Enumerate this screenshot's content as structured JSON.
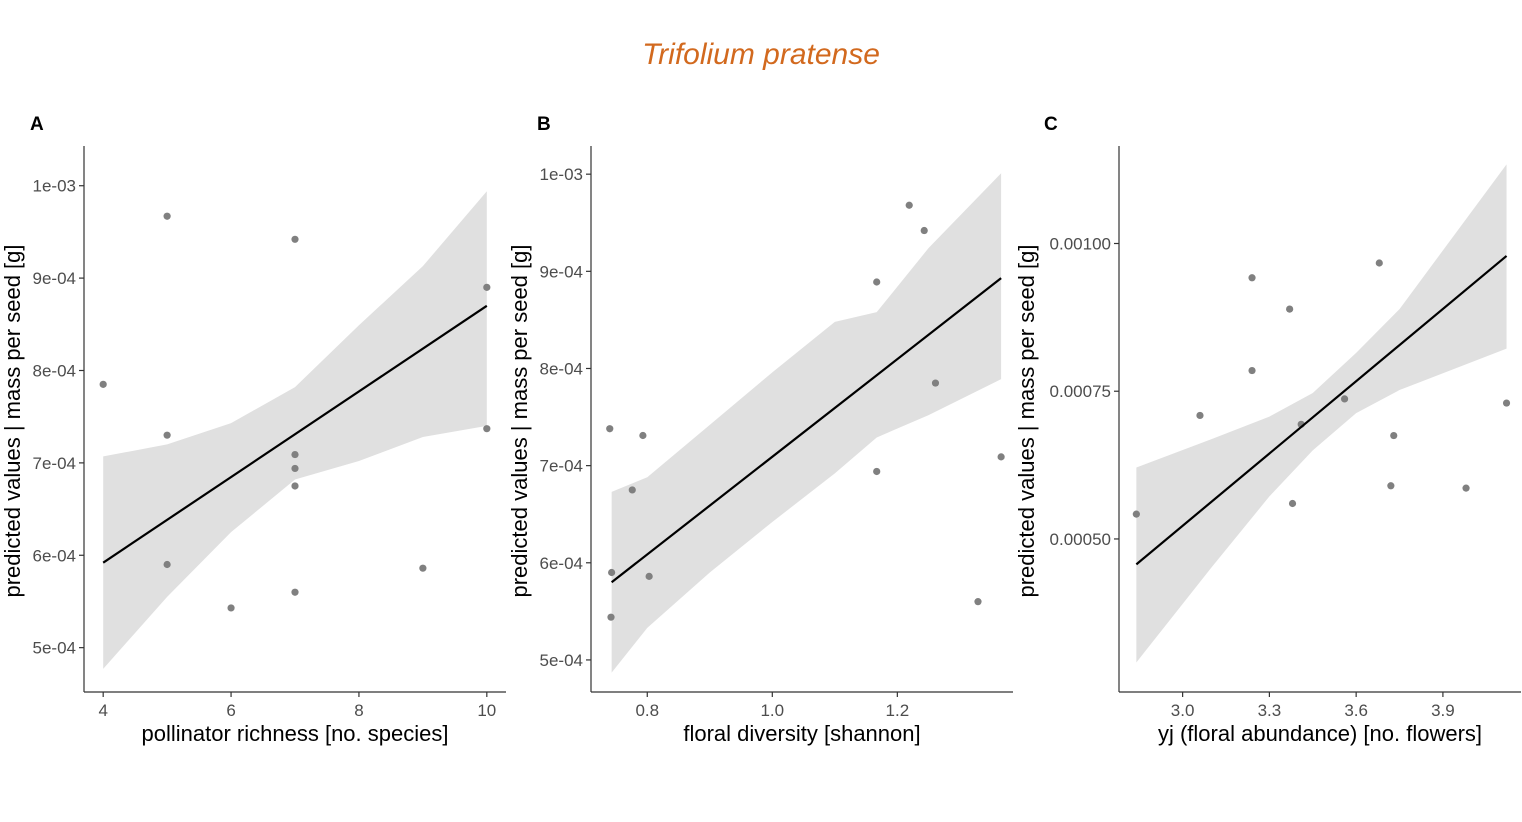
{
  "title": "Trifolium pratense",
  "colors": {
    "title": "#D2691E",
    "points": "#808080",
    "band": "#E0E0E0",
    "line": "#000000",
    "axis": "#333333"
  },
  "chart_data": [
    {
      "type": "scatter",
      "panel_label": "A",
      "xlabel": "pollinator richness [no. species]",
      "ylabel": "predicted values | mass per seed [g]",
      "xlim": [
        3.7,
        10.3
      ],
      "ylim": [
        0.000452,
        0.001043
      ],
      "xticks": [
        4,
        6,
        8,
        10
      ],
      "xtick_labels": [
        "4",
        "6",
        "8",
        "10"
      ],
      "yticks": [
        0.0005,
        0.0006,
        0.0007,
        0.0008,
        0.0009,
        0.001
      ],
      "ytick_labels": [
        "5e-04",
        "6e-04",
        "7e-04",
        "8e-04",
        "9e-04",
        "1e-03"
      ],
      "points": {
        "x": [
          4,
          5,
          5,
          5,
          6,
          7,
          7,
          7,
          7,
          7,
          9,
          10,
          10
        ],
        "y": [
          0.000785,
          0.000967,
          0.00073,
          0.00059,
          0.000543,
          0.000942,
          0.000709,
          0.000694,
          0.000675,
          0.00056,
          0.000586,
          0.00089,
          0.000737
        ]
      },
      "fit": {
        "x": [
          4,
          10
        ],
        "y": [
          0.000592,
          0.00087
        ]
      },
      "band": {
        "x": [
          4,
          5,
          6,
          7,
          8,
          9,
          10
        ],
        "lower": [
          0.000477,
          0.000555,
          0.000625,
          0.000682,
          0.000702,
          0.000728,
          0.00074
        ],
        "upper": [
          0.000707,
          0.00072,
          0.000743,
          0.000782,
          0.000849,
          0.000913,
          0.000994
        ]
      }
    },
    {
      "type": "scatter",
      "panel_label": "B",
      "xlabel": "floral diversity [shannon]",
      "ylabel": "predicted values | mass per seed [g]",
      "xlim": [
        0.71,
        1.385
      ],
      "ylim": [
        0.000467,
        0.001029
      ],
      "xticks": [
        0.8,
        1.0,
        1.2
      ],
      "xtick_labels": [
        "0.8",
        "1.0",
        "1.2"
      ],
      "yticks": [
        0.0005,
        0.0006,
        0.0007,
        0.0008,
        0.0009,
        0.001
      ],
      "ytick_labels": [
        "5e-04",
        "6e-04",
        "7e-04",
        "8e-04",
        "9e-04",
        "1e-03"
      ],
      "points": {
        "x": [
          0.74,
          0.743,
          0.742,
          0.776,
          0.793,
          0.803,
          1.167,
          1.167,
          1.219,
          1.243,
          1.261,
          1.329,
          1.366
        ],
        "y": [
          0.000738,
          0.00059,
          0.000544,
          0.000675,
          0.000731,
          0.000586,
          0.000889,
          0.000694,
          0.000968,
          0.000942,
          0.000785,
          0.00056,
          0.000709
        ]
      },
      "fit": {
        "x": [
          0.743,
          1.366
        ],
        "y": [
          0.00058,
          0.000893
        ]
      },
      "band": {
        "x": [
          0.743,
          0.8,
          0.9,
          1.0,
          1.1,
          1.167,
          1.25,
          1.366
        ],
        "lower": [
          0.000487,
          0.000533,
          0.00059,
          0.000642,
          0.000692,
          0.000729,
          0.000752,
          0.000789
        ],
        "upper": [
          0.000673,
          0.000688,
          0.000742,
          0.000796,
          0.000848,
          0.000858,
          0.000924,
          0.001001
        ]
      }
    },
    {
      "type": "scatter",
      "panel_label": "C",
      "xlabel": "yj (floral abundance) [no. flowers]",
      "ylabel": "predicted values | mass per seed [g]",
      "xlim": [
        2.78,
        4.17
      ],
      "ylim": [
        0.000241,
        0.001165
      ],
      "xticks": [
        3.0,
        3.3,
        3.6,
        3.9
      ],
      "xtick_labels": [
        "3.0",
        "3.3",
        "3.6",
        "3.9"
      ],
      "yticks": [
        0.0005,
        0.00075,
        0.001
      ],
      "ytick_labels": [
        "0.00050",
        "0.00075",
        "0.00100"
      ],
      "points": {
        "x": [
          2.84,
          3.06,
          3.24,
          3.24,
          3.37,
          3.38,
          3.41,
          3.56,
          3.68,
          3.72,
          3.73,
          3.98,
          4.12
        ],
        "y": [
          0.000542,
          0.000709,
          0.000942,
          0.000785,
          0.000889,
          0.00056,
          0.000694,
          0.000737,
          0.000967,
          0.00059,
          0.000675,
          0.000586,
          0.00073
        ]
      },
      "fit": {
        "x": [
          2.84,
          4.12
        ],
        "y": [
          0.000457,
          0.000979
        ]
      },
      "band": {
        "x": [
          2.84,
          3.1,
          3.3,
          3.45,
          3.6,
          3.75,
          4.12
        ],
        "lower": [
          0.000291,
          0.000452,
          0.000572,
          0.00065,
          0.000713,
          0.000752,
          0.000822
        ],
        "upper": [
          0.000621,
          0.000669,
          0.000707,
          0.000747,
          0.000815,
          0.000889,
          0.001134
        ]
      }
    }
  ]
}
